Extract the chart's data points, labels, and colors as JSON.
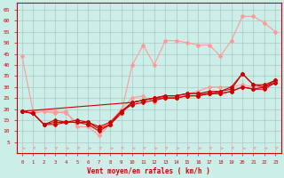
{
  "xlabel": "Vent moyen/en rafales ( km/h )",
  "bg_color": "#cceee8",
  "grid_color": "#b0c8c4",
  "xlim": [
    -0.5,
    23.5
  ],
  "ylim": [
    0,
    68
  ],
  "yticks": [
    5,
    10,
    15,
    20,
    25,
    30,
    35,
    40,
    45,
    50,
    55,
    60,
    65
  ],
  "xticks": [
    0,
    1,
    2,
    3,
    4,
    5,
    6,
    7,
    8,
    9,
    10,
    11,
    12,
    13,
    14,
    15,
    16,
    17,
    18,
    19,
    20,
    21,
    22,
    23
  ],
  "lines_light": [
    {
      "x": [
        0,
        1,
        2,
        3,
        4,
        5,
        6,
        7,
        8,
        9,
        10,
        11,
        12,
        13,
        14,
        15,
        16,
        17,
        18,
        19,
        20,
        21,
        22,
        23
      ],
      "y": [
        44,
        19,
        19,
        18,
        19,
        12,
        12,
        8,
        13,
        18,
        40,
        49,
        40,
        51,
        51,
        50,
        49,
        49,
        44,
        51,
        62,
        62,
        59,
        55
      ]
    },
    {
      "x": [
        0,
        1,
        2,
        3,
        4,
        5,
        6,
        7,
        8,
        9,
        10,
        11,
        12,
        13,
        14,
        15,
        16,
        17,
        18,
        19,
        20,
        21,
        22,
        23
      ],
      "y": [
        19,
        18,
        19,
        19,
        18,
        14,
        13,
        11,
        14,
        20,
        25,
        26,
        23,
        26,
        26,
        27,
        28,
        30,
        30,
        30,
        31,
        30,
        30,
        33
      ]
    }
  ],
  "lines_dark": [
    {
      "x": [
        0,
        1,
        2,
        3,
        4,
        5,
        6,
        7,
        8,
        9,
        10,
        11,
        12,
        13,
        14,
        15,
        16,
        17,
        18,
        19,
        20,
        21,
        22,
        23
      ],
      "y": [
        19,
        18,
        13,
        15,
        14,
        15,
        14,
        12,
        14,
        19,
        23,
        24,
        25,
        26,
        26,
        27,
        27,
        28,
        28,
        29,
        36,
        31,
        30,
        33
      ]
    },
    {
      "x": [
        0,
        1,
        2,
        3,
        4,
        5,
        6,
        7,
        8,
        9,
        10,
        11,
        12,
        13,
        14,
        15,
        16,
        17,
        18,
        19,
        20,
        21,
        22,
        23
      ],
      "y": [
        19,
        18,
        13,
        14,
        14,
        14,
        14,
        11,
        13,
        19,
        22,
        23,
        24,
        25,
        25,
        26,
        26,
        27,
        27,
        28,
        30,
        29,
        30,
        32
      ]
    },
    {
      "x": [
        0,
        1,
        2,
        3,
        4,
        5,
        6,
        7,
        8,
        9,
        10,
        11,
        12,
        13,
        14,
        15,
        16,
        17,
        18,
        19,
        20,
        21,
        22,
        23
      ],
      "y": [
        19,
        18,
        13,
        13,
        14,
        14,
        13,
        10,
        13,
        18,
        23,
        24,
        25,
        25,
        25,
        26,
        26,
        27,
        27,
        28,
        30,
        29,
        29,
        32
      ]
    },
    {
      "x": [
        0,
        10,
        11,
        12,
        13,
        14,
        15,
        16,
        17,
        18,
        19,
        20,
        21,
        22,
        23
      ],
      "y": [
        19,
        23,
        24,
        25,
        26,
        26,
        27,
        27,
        27,
        28,
        30,
        36,
        31,
        31,
        33
      ]
    }
  ],
  "dark_color": "#cc0000",
  "light_color": "#ff9999",
  "marker": "D",
  "marker_size": 2,
  "linewidth": 0.8
}
